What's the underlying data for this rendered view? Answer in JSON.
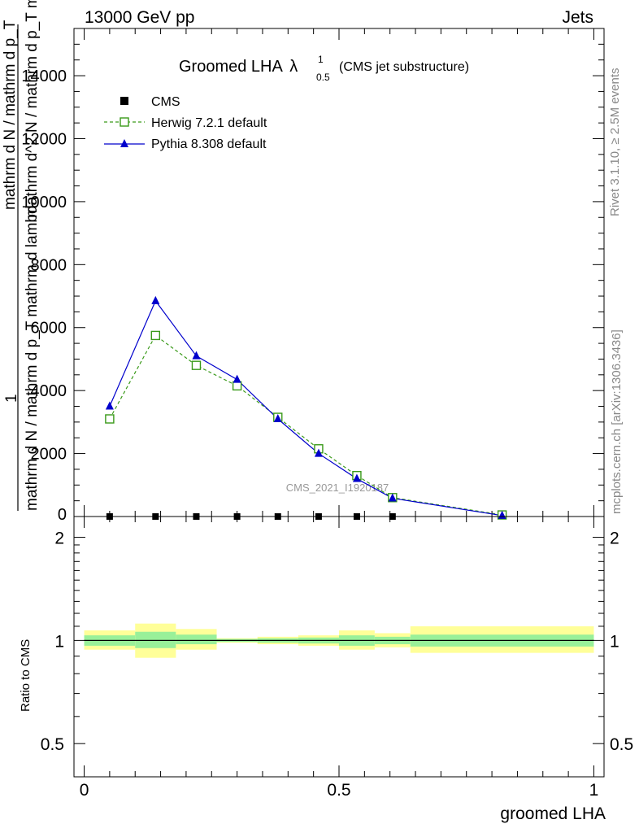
{
  "header": {
    "left": "13000 GeV pp",
    "right": "Jets"
  },
  "side_labels": {
    "rivet": "Rivet 3.1.10, ≥ 2.5M events",
    "mcplots": "mcplots.cern.ch [arXiv:1306.3436]"
  },
  "watermark": "CMS_2021_I1920187",
  "chart_data": [
    {
      "type": "line",
      "title_main": "Groomed LHA",
      "title_lambda": "λ",
      "title_sup": "1",
      "title_sub": "0.5",
      "title_suffix": "(CMS jet substructure)",
      "ylabel_line1": "mathrm d N / mathrm d p_T mathrm d lambda",
      "ylabel_line2": "mathrm d^2 N / mathrm d p_T mathrm d lambda",
      "ylabel_frac_top": "1",
      "ylabel_frac_bottom": "mathrm d N / mathrm d p_T",
      "xlim": [
        -0.02,
        1.02
      ],
      "ylim": [
        0,
        15500
      ],
      "yticks": [
        2000,
        4000,
        6000,
        8000,
        10000,
        12000,
        14000
      ],
      "ytick_labels": [
        "2000",
        "4000",
        "6000",
        "8000",
        "10000",
        "12000",
        "14000"
      ],
      "ytick_zero": "0",
      "legend_position": "top-left",
      "legend": [
        {
          "name": "CMS",
          "marker": "square-filled",
          "color": "#000000"
        },
        {
          "name": "Herwig 7.2.1 default",
          "marker": "square-open",
          "color": "#3a9a1a"
        },
        {
          "name": "Pythia 8.308 default",
          "marker": "triangle",
          "color": "#0000cc"
        }
      ],
      "series": [
        {
          "name": "CMS",
          "x": [
            0.05,
            0.14,
            0.22,
            0.3,
            0.38,
            0.46,
            0.535,
            0.605
          ],
          "y": [
            0,
            0,
            0,
            0,
            0,
            0,
            0,
            0
          ]
        },
        {
          "name": "Herwig 7.2.1 default",
          "x": [
            0.05,
            0.14,
            0.22,
            0.3,
            0.38,
            0.46,
            0.535,
            0.605,
            0.82
          ],
          "y": [
            3100,
            5750,
            4800,
            4150,
            3150,
            2150,
            1300,
            600,
            50
          ]
        },
        {
          "name": "Pythia 8.308 default",
          "x": [
            0.05,
            0.14,
            0.22,
            0.3,
            0.38,
            0.46,
            0.535,
            0.605,
            0.82
          ],
          "y": [
            3500,
            6850,
            5100,
            4350,
            3100,
            2000,
            1200,
            580,
            30
          ]
        }
      ]
    },
    {
      "type": "area",
      "ylabel": "Ratio to CMS",
      "xlabel": "groomed LHA",
      "xlim": [
        -0.02,
        1.02
      ],
      "ylim": [
        0.4,
        2.3
      ],
      "xticks": [
        0,
        0.5,
        1
      ],
      "xtick_labels": [
        "0",
        "0.5",
        "1"
      ],
      "yticks": [
        0.5,
        1,
        2
      ],
      "ytick_labels": [
        "0.5",
        "1",
        "2"
      ],
      "bands": [
        {
          "x0": 0.0,
          "x1": 0.1,
          "inner": [
            0.965,
            1.035
          ],
          "outer": [
            0.94,
            1.07
          ]
        },
        {
          "x0": 0.1,
          "x1": 0.18,
          "inner": [
            0.95,
            1.06
          ],
          "outer": [
            0.89,
            1.12
          ]
        },
        {
          "x0": 0.18,
          "x1": 0.26,
          "inner": [
            0.975,
            1.04
          ],
          "outer": [
            0.94,
            1.08
          ]
        },
        {
          "x0": 0.26,
          "x1": 0.34,
          "inner": [
            0.99,
            1.01
          ],
          "outer": [
            0.985,
            1.015
          ]
        },
        {
          "x0": 0.34,
          "x1": 0.42,
          "inner": [
            0.985,
            1.015
          ],
          "outer": [
            0.975,
            1.025
          ]
        },
        {
          "x0": 0.42,
          "x1": 0.5,
          "inner": [
            0.98,
            1.02
          ],
          "outer": [
            0.965,
            1.035
          ]
        },
        {
          "x0": 0.5,
          "x1": 0.57,
          "inner": [
            0.965,
            1.035
          ],
          "outer": [
            0.94,
            1.07
          ]
        },
        {
          "x0": 0.57,
          "x1": 0.64,
          "inner": [
            0.975,
            1.025
          ],
          "outer": [
            0.955,
            1.05
          ]
        },
        {
          "x0": 0.64,
          "x1": 1.0,
          "inner": [
            0.96,
            1.04
          ],
          "outer": [
            0.92,
            1.1
          ]
        }
      ]
    }
  ]
}
